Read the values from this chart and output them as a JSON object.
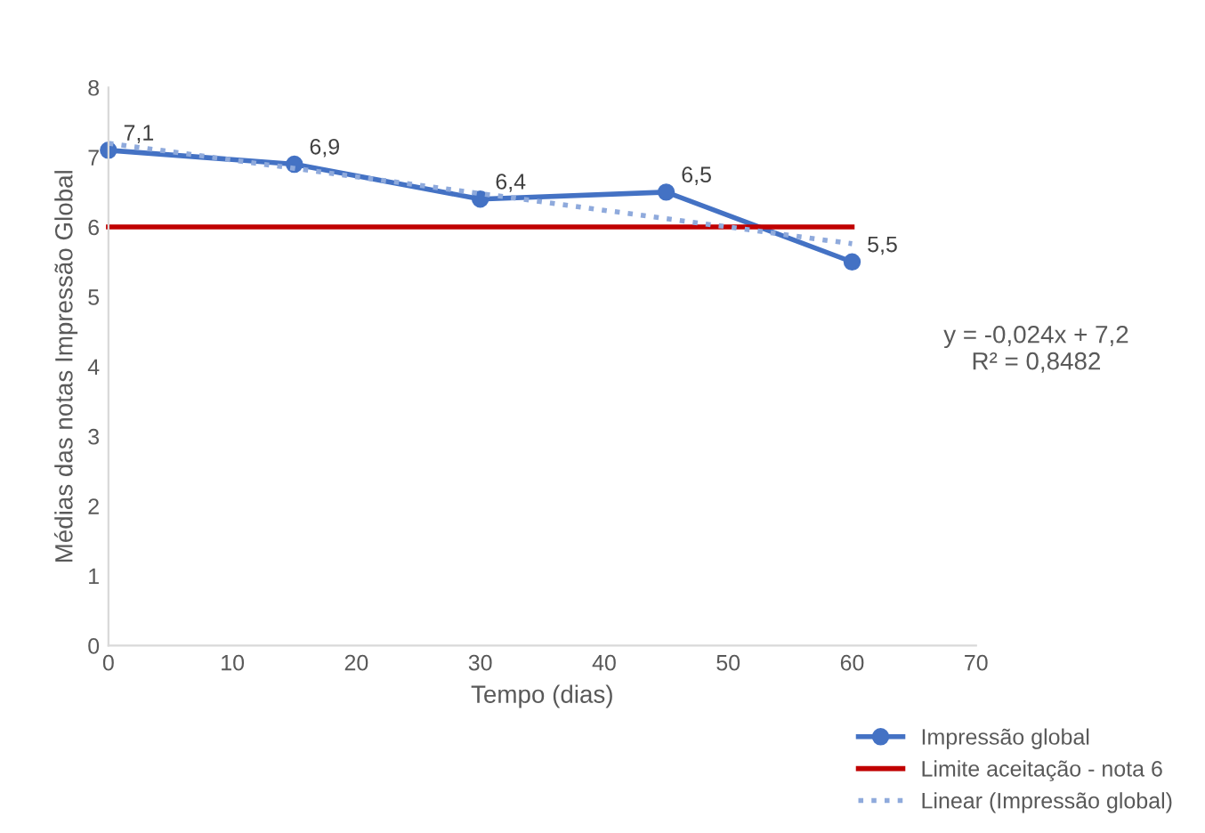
{
  "chart_data": {
    "type": "line",
    "xlabel": "Tempo (dias)",
    "ylabel": "Médias das notas Impressão Global",
    "x": [
      0,
      15,
      30,
      45,
      60
    ],
    "series": [
      {
        "name": "Impressão global",
        "color": "#4472c4",
        "values": [
          7.1,
          6.9,
          6.4,
          6.5,
          5.5
        ],
        "marker": "circle",
        "line_style": "solid",
        "value_labels": [
          "7,1",
          "6,9",
          "6,4",
          "6,5",
          "5,5"
        ]
      },
      {
        "name": "Limite aceitação - nota 6",
        "color": "#c00000",
        "values": [
          6,
          6,
          6,
          6,
          6
        ],
        "marker": "none",
        "line_style": "solid"
      },
      {
        "name": "Linear (Impressão global)",
        "color": "#8faadc",
        "values": [
          7.2,
          6.84,
          6.48,
          6.12,
          5.76
        ],
        "marker": "none",
        "line_style": "dotted"
      }
    ],
    "xlim": [
      0,
      70
    ],
    "xticks": [
      0,
      10,
      20,
      30,
      40,
      50,
      60,
      70
    ],
    "ylim": [
      0,
      8
    ],
    "yticks": [
      0,
      1,
      2,
      3,
      4,
      5,
      6,
      7,
      8
    ],
    "annotations": [
      "y = -0,024x + 7,2\nR² = 0,8482"
    ],
    "grid": false,
    "legend": "bottom right"
  }
}
